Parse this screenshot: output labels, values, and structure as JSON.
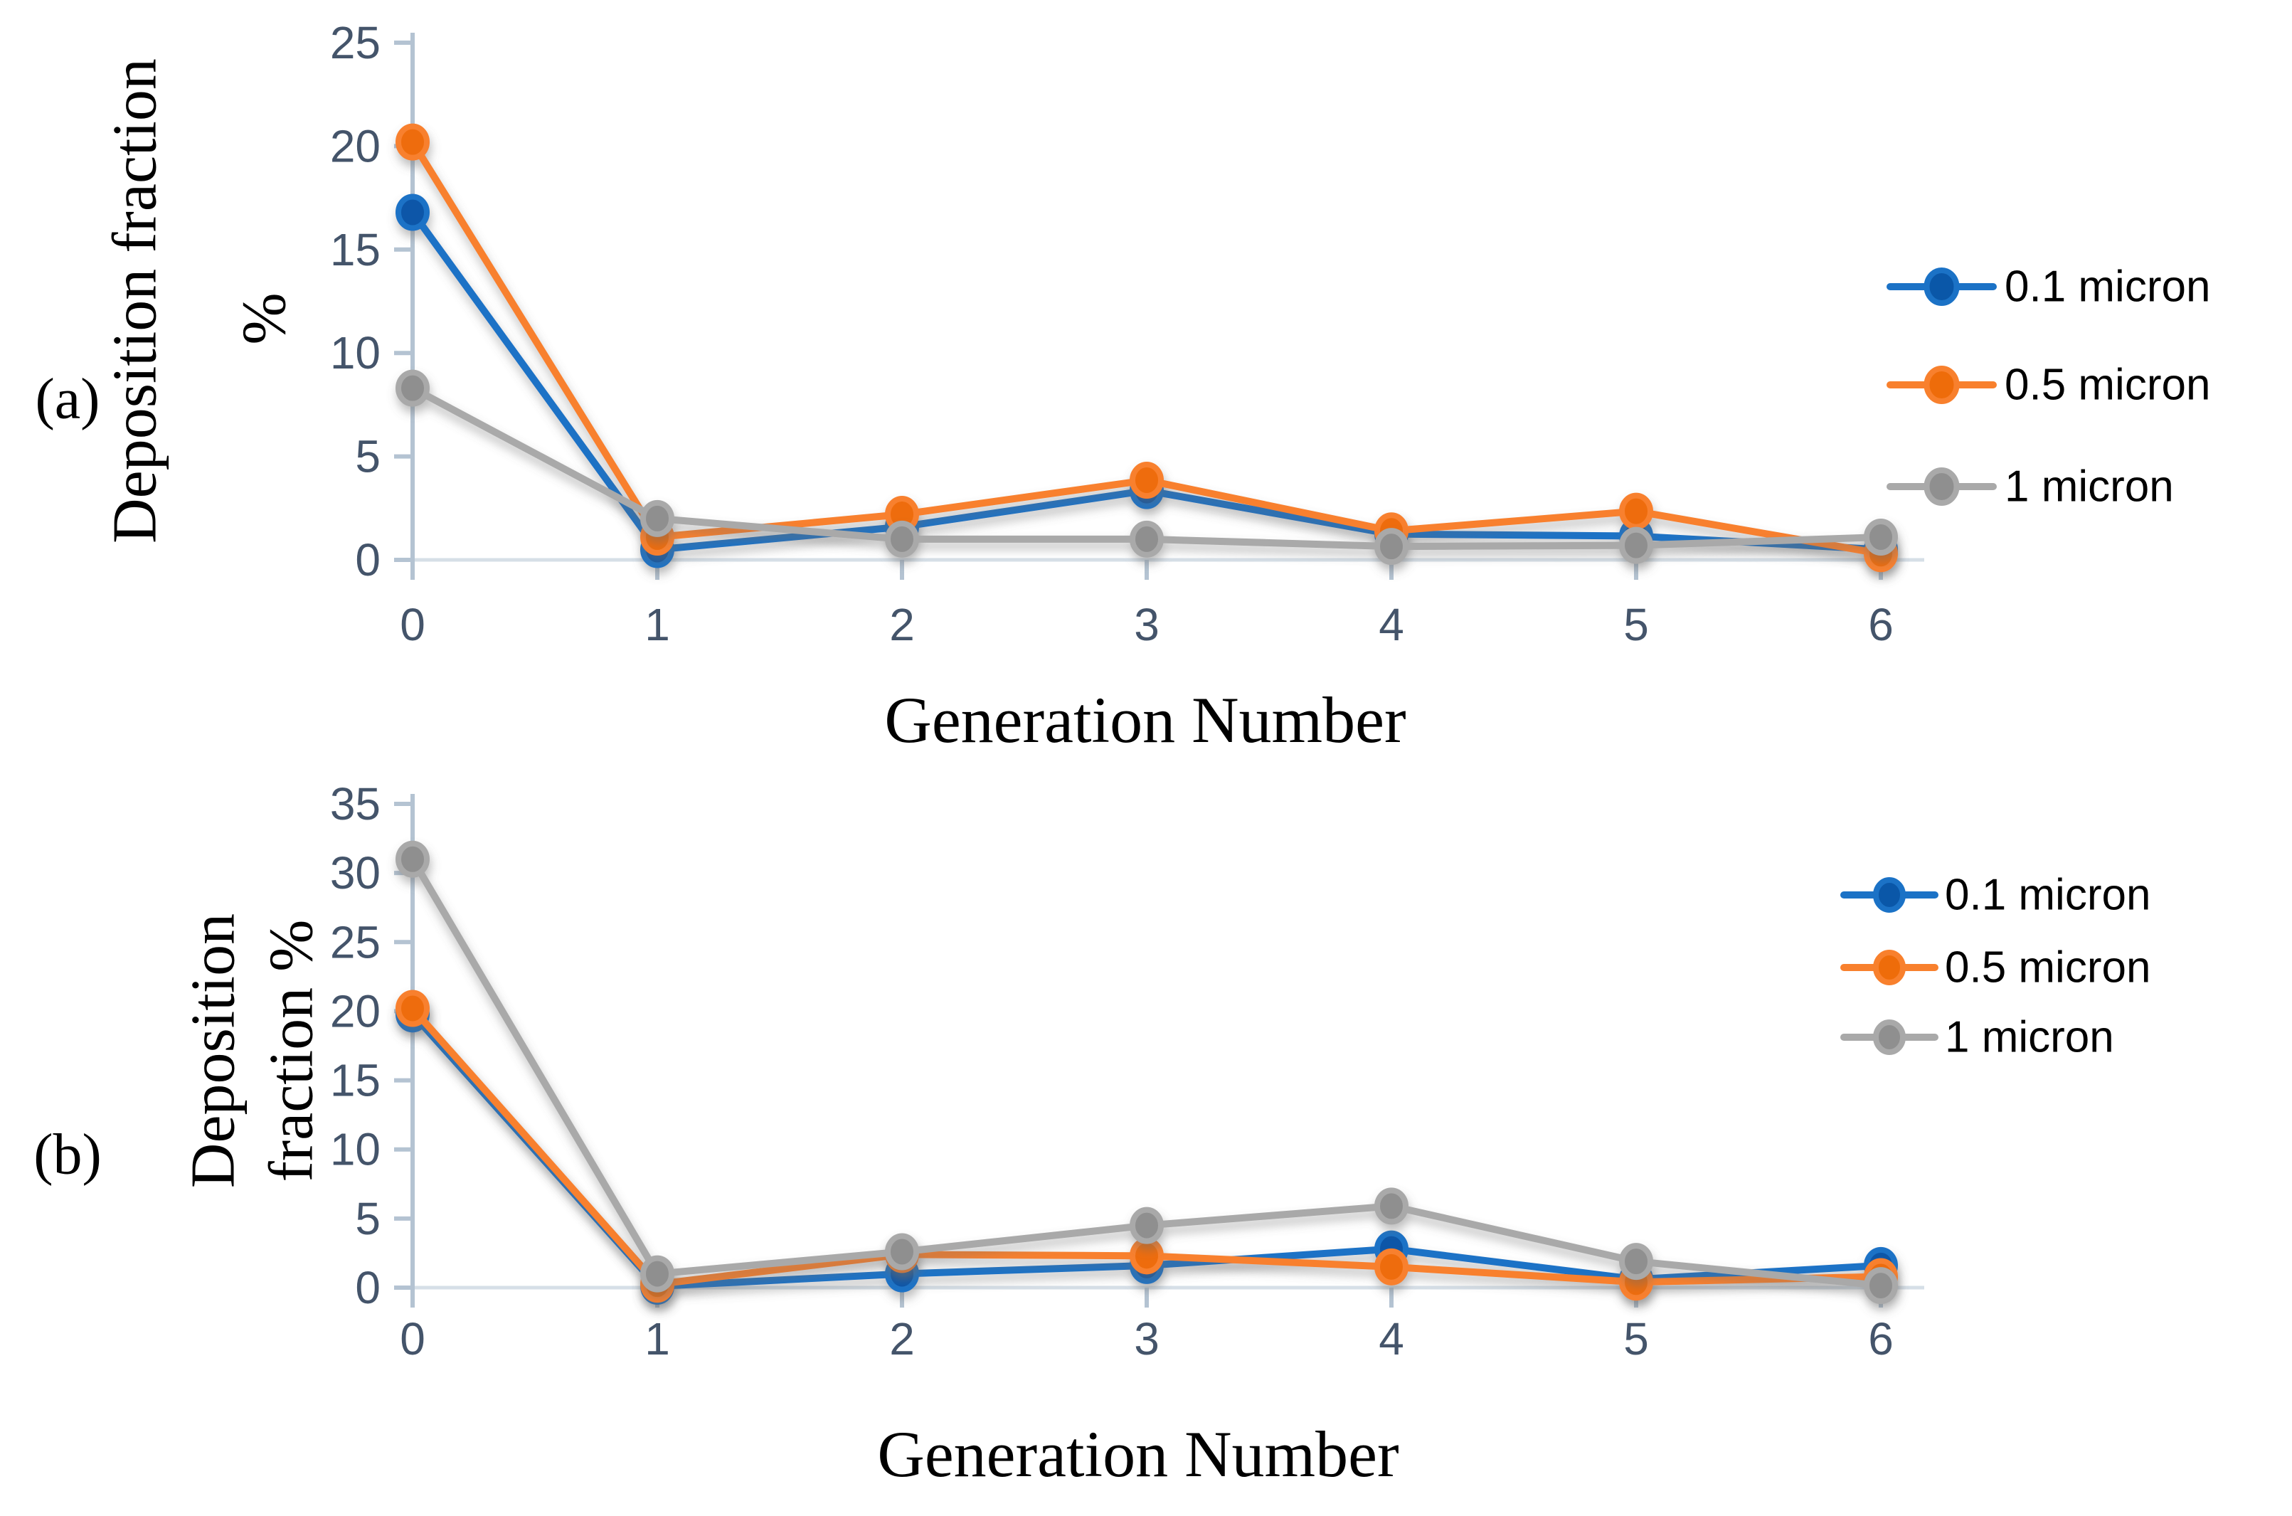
{
  "figure": {
    "background": "#ffffff",
    "panels": [
      {
        "label": "(a)",
        "y_axis_title_lines": [
          "Deposition fraction",
          "%"
        ],
        "x_axis_title": "Generation Number"
      },
      {
        "label": "(b)",
        "y_axis_title_lines": [
          "Deposition",
          "fraction %"
        ],
        "x_axis_title": "Generation Number"
      }
    ]
  },
  "colors": {
    "blue_line": "#1B72C6",
    "blue_core": "#0A57A8",
    "orange_line": "#F8802D",
    "orange_core": "#EE6C0A",
    "gray_line": "#A9A9A9",
    "gray_core": "#8F8F8F",
    "axis_line": "#B4C3D2",
    "baseline": "#D6DFE7",
    "tick_text": "#44546A",
    "title_text": "#000000"
  },
  "chart_data": [
    {
      "type": "line",
      "panel": "a",
      "title": "",
      "xlabel": "Generation Number",
      "ylabel": "Deposition fraction %",
      "x": [
        0,
        1,
        2,
        3,
        4,
        5,
        6
      ],
      "xticks": [
        0,
        1,
        2,
        3,
        4,
        5,
        6
      ],
      "ylim": [
        0,
        25
      ],
      "yticks": [
        0,
        5,
        10,
        15,
        20,
        25
      ],
      "grid": false,
      "legend_position": "right",
      "series": [
        {
          "name": "0.1 micron",
          "color": "blue",
          "values": [
            16.8,
            0.5,
            1.6,
            3.35,
            1.25,
            1.15,
            0.5
          ]
        },
        {
          "name": "0.5 micron",
          "color": "orange",
          "values": [
            20.2,
            1.1,
            2.2,
            3.85,
            1.4,
            2.35,
            0.3
          ]
        },
        {
          "name": "1 micron",
          "color": "gray",
          "values": [
            8.3,
            2.0,
            1.0,
            1.0,
            0.65,
            0.7,
            1.1
          ]
        }
      ]
    },
    {
      "type": "line",
      "panel": "b",
      "title": "",
      "xlabel": "Generation Number",
      "ylabel": "Deposition fraction %",
      "x": [
        0,
        1,
        2,
        3,
        4,
        5,
        6
      ],
      "xticks": [
        0,
        1,
        2,
        3,
        4,
        5,
        6
      ],
      "ylim": [
        0,
        35
      ],
      "yticks": [
        0,
        5,
        10,
        15,
        20,
        25,
        30,
        35
      ],
      "grid": false,
      "legend_position": "right",
      "series": [
        {
          "name": "0.1 micron",
          "color": "blue",
          "values": [
            19.8,
            0.1,
            1.0,
            1.6,
            2.8,
            0.6,
            1.6
          ]
        },
        {
          "name": "0.5 micron",
          "color": "orange",
          "values": [
            20.2,
            0.25,
            2.4,
            2.3,
            1.5,
            0.4,
            0.8
          ]
        },
        {
          "name": "1 micron",
          "color": "gray",
          "values": [
            31.0,
            1.0,
            2.6,
            4.5,
            5.9,
            1.9,
            0.15
          ]
        }
      ]
    }
  ]
}
